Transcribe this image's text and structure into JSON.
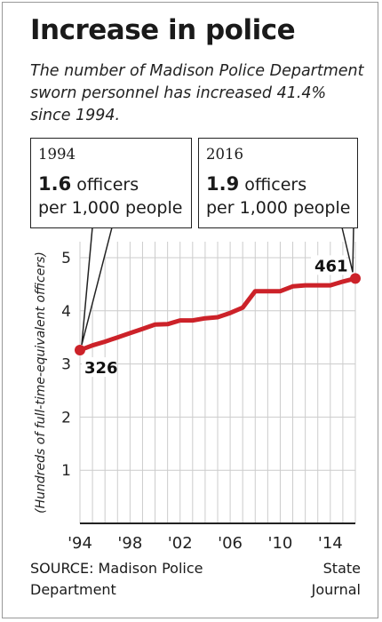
{
  "title": "Increase in police",
  "subtitle": "The number of Madison Police Department sworn personnel has increased 41.4% since 1994.",
  "callouts": [
    {
      "year": "1994",
      "rate": "1.6",
      "unit": "officers",
      "line2": "per 1,000 people"
    },
    {
      "year": "2016",
      "rate": "1.9",
      "unit": "officers",
      "line2": "per 1,000 people"
    }
  ],
  "source": "SOURCE: Madison Police Department",
  "credit": "State Journal",
  "colors": {
    "line": "#cc2229",
    "grid": "#cccccc",
    "axis": "#222222"
  },
  "chart_data": {
    "type": "line",
    "title": "Increase in police",
    "xlabel": "",
    "ylabel": "(Hundreds of full-time-equivalent officers)",
    "xlim": [
      1994,
      2016
    ],
    "ylim": [
      0,
      5
    ],
    "yticks": [
      1,
      2,
      3,
      4,
      5
    ],
    "xticks": [
      1994,
      1998,
      2002,
      2006,
      2010,
      2014
    ],
    "xtick_labels": [
      "'94",
      "'98",
      "'02",
      "'06",
      "'10",
      "'14"
    ],
    "grid": "vertical and horizontal",
    "series": [
      {
        "x": [
          1994,
          1995,
          1996,
          1997,
          1998,
          1999,
          2000,
          2001,
          2002,
          2003,
          2004,
          2005,
          2006,
          2007,
          2008,
          2009,
          2010,
          2011,
          2012,
          2013,
          2014,
          2015,
          2016
        ],
        "values": [
          3.26,
          3.35,
          3.42,
          3.5,
          3.58,
          3.66,
          3.74,
          3.75,
          3.82,
          3.82,
          3.86,
          3.88,
          3.96,
          4.06,
          4.37,
          4.37,
          4.37,
          4.46,
          4.48,
          4.48,
          4.48,
          4.55,
          4.61
        ]
      }
    ],
    "annotations": [
      {
        "x": 1994,
        "y": 3.26,
        "label": "326"
      },
      {
        "x": 2016,
        "y": 4.61,
        "label": "461"
      }
    ]
  }
}
